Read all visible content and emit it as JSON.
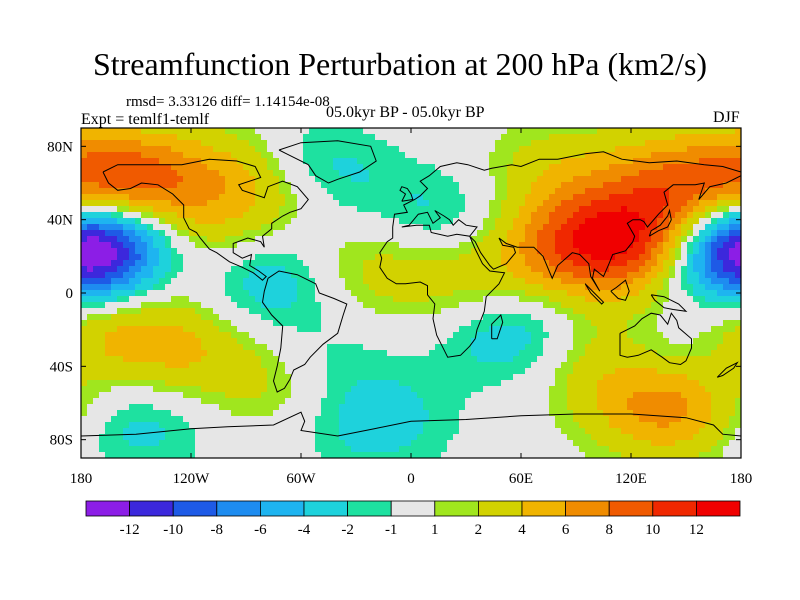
{
  "chart_data": {
    "type": "contour-map",
    "title": "Streamfunction Perturbation at 200 hPa (km2/s)",
    "stats": "rmsd= 3.33126 diff= 1.14154e-08",
    "experiment": "Expt = temlf1-temlf",
    "period": "05.0kyr BP - 05.0kyr BP",
    "season": "DJF",
    "xlim": [
      -180,
      180
    ],
    "ylim": [
      -90,
      90
    ],
    "x_ticks": [
      {
        "value": -180,
        "label": "180"
      },
      {
        "value": -120,
        "label": "120W"
      },
      {
        "value": -60,
        "label": "60W"
      },
      {
        "value": 0,
        "label": "0"
      },
      {
        "value": 60,
        "label": "60E"
      },
      {
        "value": 120,
        "label": "120E"
      },
      {
        "value": 180,
        "label": "180"
      }
    ],
    "y_ticks": [
      {
        "value": 80,
        "label": "80N"
      },
      {
        "value": 40,
        "label": "40N"
      },
      {
        "value": 0,
        "label": "0"
      },
      {
        "value": -40,
        "label": "40S"
      },
      {
        "value": -80,
        "label": "80S"
      }
    ],
    "colorbar": {
      "levels": [
        -12,
        -10,
        -8,
        -6,
        -4,
        -2,
        -1,
        1,
        2,
        4,
        6,
        8,
        10,
        12
      ],
      "labels": [
        "-12",
        "-10",
        "-8",
        "-6",
        "-4",
        "-2",
        "-1",
        "1",
        "2",
        "4",
        "6",
        "8",
        "10",
        "12"
      ],
      "colors": [
        "#8c1ee6",
        "#3c28dc",
        "#1e5ae6",
        "#1e8cf0",
        "#1eb4f0",
        "#1ed2dc",
        "#1ee1a0",
        "#e6e6e6",
        "#a0e61e",
        "#d2d200",
        "#f0b400",
        "#f08c00",
        "#f05a00",
        "#f02800",
        "#f00000"
      ]
    },
    "field_features": [
      {
        "lon": -172,
        "lat": 25,
        "value": -12
      },
      {
        "lon": -155,
        "lat": 60,
        "value": 10
      },
      {
        "lon": -60,
        "lat": 65,
        "value": -5
      },
      {
        "lon": -85,
        "lat": 10,
        "value": -5
      },
      {
        "lon": -115,
        "lat": 20,
        "value": 4
      },
      {
        "lon": -80,
        "lat": 55,
        "value": 4
      },
      {
        "lon": -60,
        "lat": -40,
        "value": -5
      },
      {
        "lon": -70,
        "lat": -45,
        "value": 6
      },
      {
        "lon": -90,
        "lat": 65,
        "value": 3
      },
      {
        "lon": -20,
        "lat": 15,
        "value": 3
      },
      {
        "lon": 15,
        "lat": 40,
        "value": -3
      },
      {
        "lon": 35,
        "lat": 5,
        "value": 3
      },
      {
        "lon": 60,
        "lat": -20,
        "value": -5
      },
      {
        "lon": 90,
        "lat": 25,
        "value": 8
      },
      {
        "lon": 130,
        "lat": 30,
        "value": 9
      },
      {
        "lon": 150,
        "lat": 60,
        "value": 7
      },
      {
        "lon": 145,
        "lat": -35,
        "value": -4
      },
      {
        "lon": 140,
        "lat": -60,
        "value": 8
      },
      {
        "lon": 175,
        "lat": 25,
        "value": -7
      },
      {
        "lon": 100,
        "lat": -30,
        "value": 4
      },
      {
        "lon": 80,
        "lat": 65,
        "value": 3
      },
      {
        "lon": -175,
        "lat": -20,
        "value": 4
      },
      {
        "lon": -130,
        "lat": -30,
        "value": 4
      },
      {
        "lon": -20,
        "lat": -70,
        "value": -3
      },
      {
        "lon": -150,
        "lat": -70,
        "value": -3
      }
    ]
  }
}
